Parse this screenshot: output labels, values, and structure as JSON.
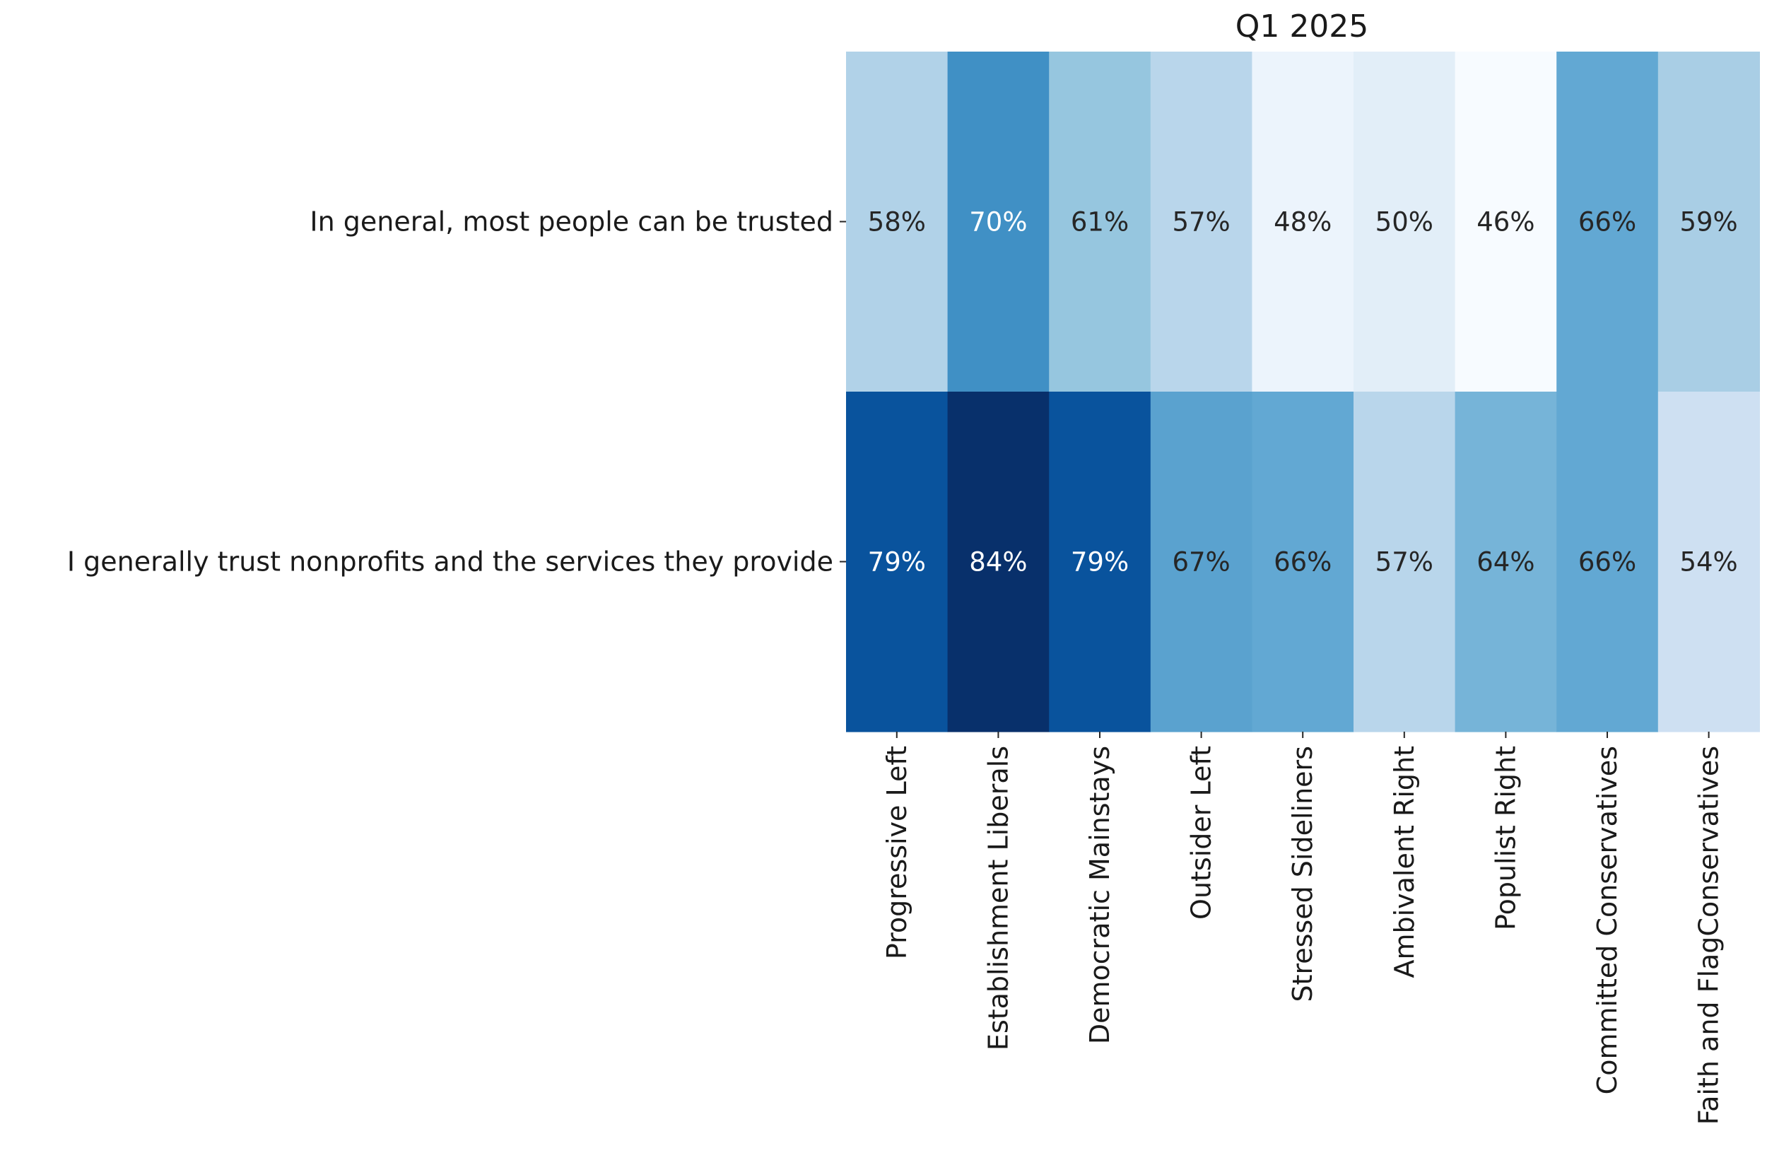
{
  "chart_data": {
    "type": "heatmap",
    "title": "Q1 2025",
    "colormap": "Blues",
    "value_range": [
      46,
      84
    ],
    "rows": [
      "In general, most people can be trusted",
      "I generally trust nonprofits and the services they provide"
    ],
    "columns": [
      "Progressive Left",
      "Establishment Liberals",
      "Democratic Mainstays",
      "Outsider Left",
      "Stressed Sideliners",
      "Ambivalent Right",
      "Populist Right",
      "Committed Conservatives",
      "Faith and FlagConservatives"
    ],
    "values": [
      [
        58,
        70,
        61,
        57,
        48,
        50,
        46,
        66,
        59
      ],
      [
        79,
        84,
        79,
        67,
        66,
        57,
        64,
        66,
        54
      ]
    ],
    "labels": [
      [
        "58%",
        "70%",
        "61%",
        "57%",
        "48%",
        "50%",
        "46%",
        "66%",
        "59%"
      ],
      [
        "79%",
        "84%",
        "79%",
        "67%",
        "66%",
        "57%",
        "64%",
        "66%",
        "54%"
      ]
    ],
    "xlabel": "",
    "ylabel": "",
    "colorbar": false
  }
}
